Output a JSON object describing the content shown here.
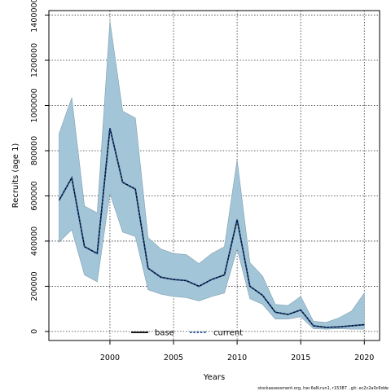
{
  "chart_data": {
    "type": "line",
    "xlabel": "Years",
    "ylabel": "Recruits (age 1)",
    "xlim": [
      1995.2,
      2021.2
    ],
    "ylim": [
      -40000,
      1420000
    ],
    "x_ticks": [
      2000,
      2005,
      2010,
      2015,
      2020
    ],
    "x_tick_labels": [
      "2000",
      "2005",
      "2010",
      "2015",
      "2020"
    ],
    "y_ticks": [
      0,
      200000,
      400000,
      600000,
      800000,
      1000000,
      1200000,
      1400000
    ],
    "y_tick_labels": [
      "0",
      "200000",
      "400000",
      "600000",
      "800000",
      "1000000",
      "1200000",
      "1400000"
    ],
    "grid": true,
    "x": [
      1996,
      1997,
      1998,
      1999,
      2000,
      2001,
      2002,
      2003,
      2004,
      2005,
      2006,
      2007,
      2008,
      2009,
      2010,
      2011,
      2012,
      2013,
      2014,
      2015,
      2016,
      2017,
      2018,
      2019,
      2020
    ],
    "band": {
      "color": "#a3c5d8",
      "stroke": "#7f9fb0",
      "upper": [
        875000,
        1035000,
        555000,
        525000,
        1375000,
        975000,
        945000,
        415000,
        365000,
        345000,
        340000,
        300000,
        345000,
        375000,
        760000,
        305000,
        245000,
        120000,
        115000,
        155000,
        45000,
        40000,
        60000,
        90000,
        170000
      ],
      "lower": [
        395000,
        450000,
        250000,
        220000,
        610000,
        440000,
        420000,
        185000,
        165000,
        155000,
        150000,
        135000,
        155000,
        170000,
        365000,
        145000,
        120000,
        55000,
        55000,
        65000,
        12000,
        10000,
        12000,
        10000,
        10000
      ]
    },
    "series": [
      {
        "name": "base",
        "style": "solid",
        "color": "#000000",
        "values": [
          580000,
          680000,
          375000,
          345000,
          900000,
          660000,
          630000,
          280000,
          240000,
          230000,
          225000,
          200000,
          230000,
          250000,
          495000,
          200000,
          160000,
          85000,
          75000,
          95000,
          25000,
          18000,
          20000,
          25000,
          30000
        ]
      },
      {
        "name": "current",
        "style": "dashed",
        "color": "#1f4e9c",
        "values": [
          580000,
          680000,
          375000,
          345000,
          900000,
          660000,
          630000,
          280000,
          240000,
          230000,
          225000,
          200000,
          230000,
          250000,
          495000,
          200000,
          160000,
          85000,
          75000,
          95000,
          25000,
          18000,
          20000,
          25000,
          30000
        ]
      }
    ],
    "legend": {
      "placement": "bottom-center",
      "entries": [
        "base",
        "current"
      ]
    }
  },
  "footer": "stockassessment.org, her.6aN.run1, r15387 , git: ec2c2a0c6dde"
}
